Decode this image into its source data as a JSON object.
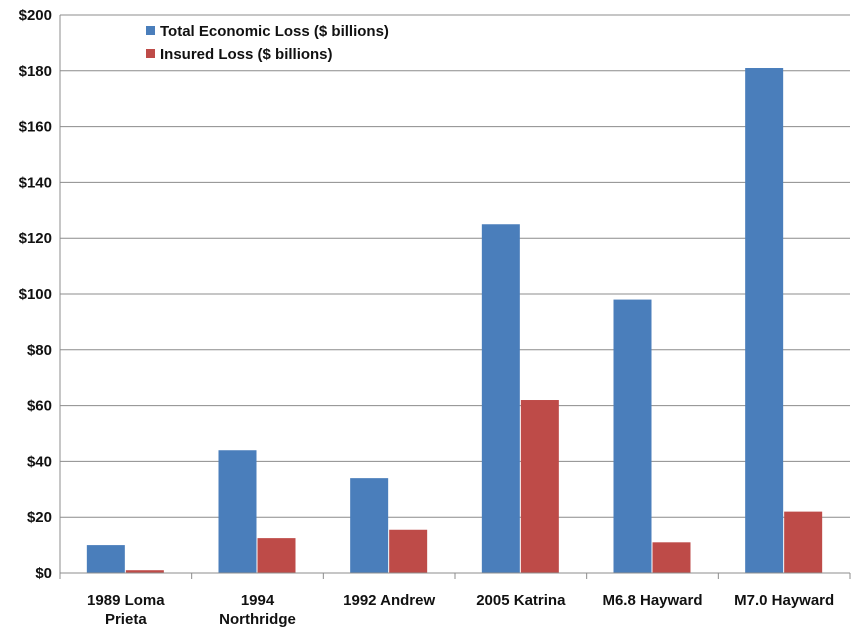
{
  "chart_data": {
    "type": "bar",
    "categories": [
      [
        "1989 Loma",
        "Prieta"
      ],
      [
        "1994",
        "Northridge"
      ],
      [
        "1992 Andrew"
      ],
      [
        "2005 Katrina"
      ],
      [
        "M6.8 Hayward"
      ],
      [
        "M7.0 Hayward"
      ]
    ],
    "series": [
      {
        "name": "Total Economic Loss ($ billions)",
        "color": "#4a7ebb",
        "values": [
          10,
          44,
          34,
          125,
          98,
          181
        ]
      },
      {
        "name": "Insured Loss ($ billions)",
        "color": "#be4b48",
        "values": [
          1,
          12.5,
          15.5,
          62,
          11,
          22
        ]
      }
    ],
    "ylim": [
      0,
      200
    ],
    "yticks": [
      0,
      20,
      40,
      60,
      80,
      100,
      120,
      140,
      160,
      180,
      200
    ],
    "ytick_labels": [
      "$0",
      "$20",
      "$40",
      "$60",
      "$80",
      "$100",
      "$120",
      "$140",
      "$160",
      "$180",
      "$200"
    ],
    "grid": true,
    "legend_position": "top-left"
  }
}
